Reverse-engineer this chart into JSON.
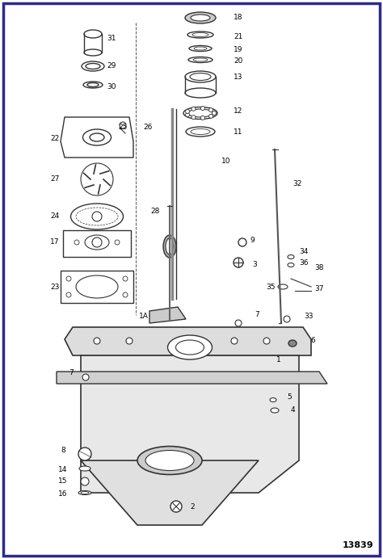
{
  "border_color": "#2B2B8C",
  "bg_color": "#FFFFFF",
  "line_color": "#333333",
  "label_color": "#000000",
  "fig_id": "13839",
  "border_width": 2.5
}
